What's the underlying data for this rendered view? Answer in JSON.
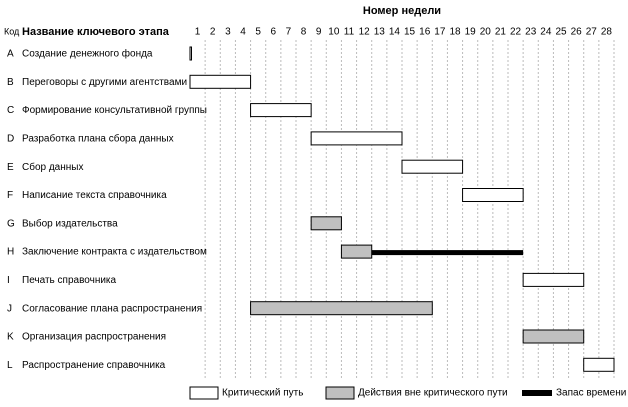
{
  "chart_data": {
    "type": "gantt",
    "title": "Номер недели",
    "code_header": "Код",
    "name_header": "Название ключевого этапа",
    "weeks": [
      "1",
      "2",
      "3",
      "4",
      "5",
      "6",
      "7",
      "8",
      "9",
      "10",
      "11",
      "12",
      "13",
      "14",
      "15",
      "16",
      "17",
      "18",
      "19",
      "20",
      "21",
      "22",
      "23",
      "24",
      "25",
      "26",
      "27",
      "28"
    ],
    "xlim": [
      0,
      28
    ],
    "grid": true,
    "series": [
      {
        "name": "Критический путь",
        "color": "#ffffff"
      },
      {
        "name": "Действия вне критического пути",
        "color": "#c0c0c0"
      },
      {
        "name": "Запас времени",
        "color": "#000000"
      }
    ],
    "tasks": [
      {
        "code": "A",
        "name": "Создание денежного фонда",
        "start": 0,
        "end": 0,
        "series": 0
      },
      {
        "code": "B",
        "name": "Переговоры с другими агентствами",
        "start": 0,
        "end": 4,
        "series": 0
      },
      {
        "code": "C",
        "name": "Формирование консультативной группы",
        "start": 4,
        "end": 8,
        "series": 0
      },
      {
        "code": "D",
        "name": "Разработка плана сбора данных",
        "start": 8,
        "end": 14,
        "series": 0
      },
      {
        "code": "E",
        "name": "Сбор данных",
        "start": 14,
        "end": 18,
        "series": 0
      },
      {
        "code": "F",
        "name": "Написание текста справочника",
        "start": 18,
        "end": 22,
        "series": 0
      },
      {
        "code": "G",
        "name": "Выбор издательства",
        "start": 8,
        "end": 10,
        "series": 1
      },
      {
        "code": "H",
        "name": "Заключение контракта с издательством",
        "start": 10,
        "end": 12,
        "series": 1,
        "slack_end": 22
      },
      {
        "code": "I",
        "name": "Печать справочника",
        "start": 22,
        "end": 26,
        "series": 0
      },
      {
        "code": "J",
        "name": "Согласование плана распространения",
        "start": 4,
        "end": 16,
        "series": 1
      },
      {
        "code": "K",
        "name": "Организация распространения",
        "start": 22,
        "end": 26,
        "series": 1
      },
      {
        "code": "L",
        "name": "Распространение справочника",
        "start": 26,
        "end": 28,
        "series": 0
      }
    ]
  }
}
